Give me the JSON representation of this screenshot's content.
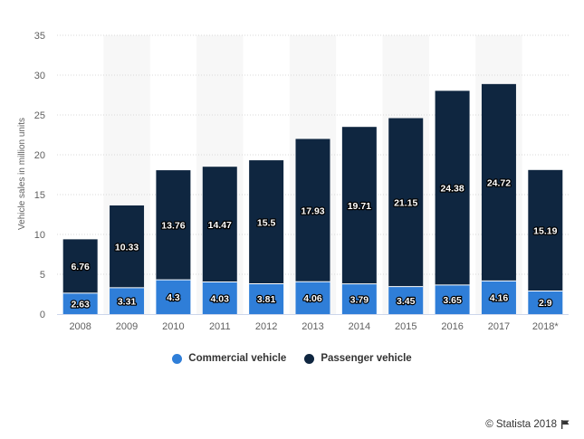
{
  "chart_data": {
    "type": "bar",
    "stacked": true,
    "categories": [
      "2008",
      "2009",
      "2010",
      "2011",
      "2012",
      "2013",
      "2014",
      "2015",
      "2016",
      "2017",
      "2018*"
    ],
    "series": [
      {
        "name": "Commercial vehicle",
        "color": "#2f7ed8",
        "values": [
          2.63,
          3.31,
          4.3,
          4.03,
          3.81,
          4.06,
          3.79,
          3.45,
          3.65,
          4.16,
          2.9
        ]
      },
      {
        "name": "Passenger vehicle",
        "color": "#0f2640",
        "values": [
          6.76,
          10.33,
          13.76,
          14.47,
          15.5,
          17.93,
          19.71,
          21.15,
          24.38,
          24.72,
          15.19
        ]
      }
    ],
    "value_labels": {
      "commercial": [
        "2.63",
        "3.31",
        "4.3",
        "4.03",
        "3.81",
        "4.06",
        "3.79",
        "3.45",
        "3.65",
        "4.16",
        "2.9"
      ],
      "passenger": [
        "6.76",
        "10.33",
        "13.76",
        "14.47",
        "15.5",
        "17.93",
        "19.71",
        "21.15",
        "24.38",
        "24.72",
        "15.19"
      ]
    },
    "ylabel": "Vehicle sales in million units",
    "xlabel": "",
    "ylim": [
      0,
      35
    ],
    "yticks": [
      "0",
      "5",
      "10",
      "15",
      "20",
      "25",
      "30",
      "35"
    ],
    "grid": true,
    "legend_position": "bottom-center"
  },
  "legend": {
    "commercial_label": "Commercial vehicle",
    "passenger_label": "Passenger vehicle"
  },
  "credit": {
    "text": "© Statista 2018"
  }
}
